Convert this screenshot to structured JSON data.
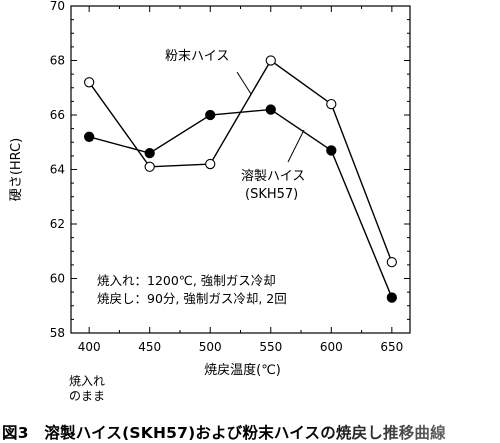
{
  "chart_data": {
    "type": "line",
    "x": [
      400,
      450,
      500,
      550,
      600,
      650
    ],
    "series": [
      {
        "name": "粉末ハイス",
        "marker": "open-circle",
        "values": [
          67.2,
          64.1,
          64.2,
          68.0,
          66.4,
          60.6
        ]
      },
      {
        "name": "溶製ハイス\n(SKH57)",
        "marker": "filled-circle",
        "values": [
          65.2,
          64.6,
          66.0,
          66.2,
          64.7,
          59.3
        ]
      }
    ],
    "xlabel": "焼戻温度(℃)",
    "ylabel": "硬さ(HRC)",
    "xlim": [
      385,
      665
    ],
    "ylim": [
      58,
      70
    ],
    "xticks": [
      "400",
      "450",
      "500",
      "550",
      "600",
      "650"
    ],
    "yticks": [
      "58",
      "60",
      "62",
      "64",
      "66",
      "68",
      "70"
    ],
    "x_extra_label": [
      "焼入れ",
      "のまま"
    ],
    "note_lines": [
      "焼入れ：1200℃, 強制ガス冷却",
      "焼戻し：90分, 強制ガス冷却, 2回"
    ],
    "grid": false,
    "legend": "inline labels with leader lines"
  },
  "caption": "図3　溶製ハイス(SKH57)および粉末ハイスの焼戻し推移曲線"
}
